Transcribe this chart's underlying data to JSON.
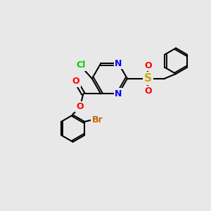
{
  "bg_color": "#e8e8e8",
  "bond_color": "#000000",
  "atom_colors": {
    "Cl": "#00cc00",
    "N": "#0000ff",
    "O": "#ff0000",
    "S": "#ccaa00",
    "Br": "#cc6600",
    "C": "#000000"
  },
  "font_size": 9,
  "bond_width": 1.5
}
